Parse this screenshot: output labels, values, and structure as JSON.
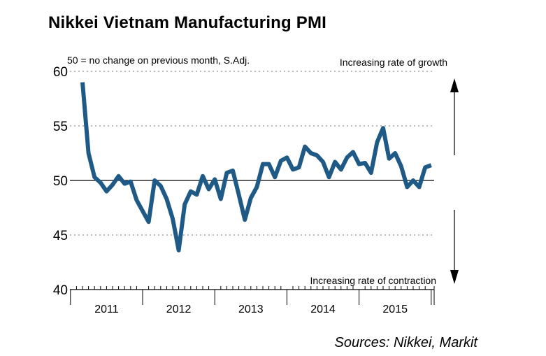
{
  "chart_data": {
    "type": "line",
    "title": "Nikkei Vietnam Manufacturing PMI",
    "subtitle": "50 = no change on previous month, S.Adj.",
    "upper_annotation": "Increasing rate of growth",
    "lower_annotation": "Increasing rate of contraction",
    "source": "Sources: Nikkei, Markit",
    "ylim": [
      40,
      60
    ],
    "yticks": [
      "60",
      "55",
      "50",
      "45",
      "40"
    ],
    "ytick_values": [
      60,
      55,
      50,
      45,
      40
    ],
    "reference_line": 50,
    "years": [
      "2011",
      "2012",
      "2013",
      "2014",
      "2015"
    ],
    "x_start_month": "2011-03",
    "series": [
      {
        "name": "Nikkei Vietnam Manufacturing PMI",
        "color": "#1f5a87",
        "values": [
          59.0,
          52.5,
          50.3,
          49.8,
          49.0,
          49.6,
          50.4,
          49.7,
          49.9,
          48.2,
          47.2,
          46.2,
          50.0,
          49.5,
          48.3,
          46.5,
          43.6,
          47.8,
          49.0,
          48.7,
          50.4,
          49.2,
          50.1,
          48.3,
          50.7,
          50.9,
          48.7,
          46.4,
          48.4,
          49.4,
          51.5,
          51.5,
          50.3,
          51.8,
          52.1,
          51.0,
          51.2,
          53.1,
          52.5,
          52.3,
          51.7,
          50.3,
          51.7,
          51.0,
          52.1,
          52.6,
          51.5,
          51.6,
          50.7,
          53.5,
          54.8,
          52.0,
          52.5,
          51.3,
          49.4,
          50.0,
          49.4,
          51.2,
          51.4
        ]
      }
    ],
    "colors": {
      "line": "#1f5a87",
      "grid": "#777777",
      "axis": "#000000"
    }
  }
}
